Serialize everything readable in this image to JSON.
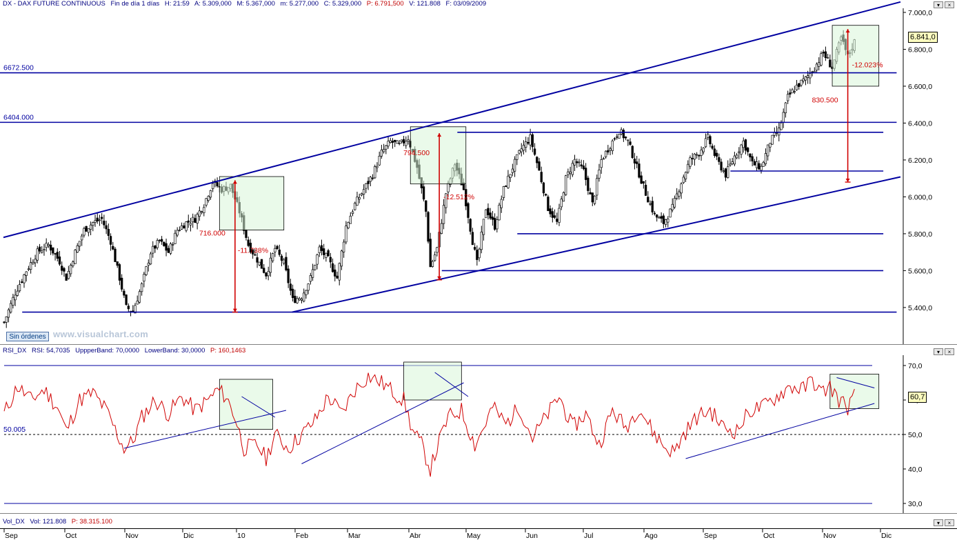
{
  "price_header": {
    "symbol": "DX - DAX FUTURE CONTINUOUS",
    "period": "Fin de día 1 días",
    "hour": "H: 21:59",
    "open": "A: 5.309,000",
    "max": "M: 5.367,000",
    "min": "m: 5.277,000",
    "close": "C: 5.329,000",
    "p": "P: 6.791,500",
    "volume": "V: 121.808",
    "date": "F: 03/09/2009"
  },
  "rsi_header": {
    "name": "RSI_DX",
    "rsi": "RSI: 54,7035",
    "upper": "UppperBand: 70,0000",
    "lower": "LowerBand: 30,0000",
    "p": "P: 160,1463"
  },
  "vol_header": {
    "name": "Vol_DX",
    "vol": "Vol: 121.808",
    "p": "P: 38.315.100"
  },
  "orders_button": "Sin órdenes",
  "watermark": "www.visualchart.com",
  "last_price_label": "6.841,0",
  "last_rsi_label": "60,7",
  "colors": {
    "lines": "#0000a0",
    "measure": "#d00000",
    "rsi": "#d00000",
    "box_fill": "#d8f5d8",
    "candles": "#000000"
  },
  "chart_data": [
    {
      "type": "candlestick",
      "title": "DX - DAX FUTURE CONTINUOUS",
      "ylim": [
        5250,
        7000
      ],
      "y_ticks": [
        "7.000,0",
        "6.800,0",
        "6.600,0",
        "6.400,0",
        "6.200,0",
        "6.000,0",
        "5.800,0",
        "5.600,0",
        "5.400,0"
      ],
      "y_tick_values": [
        7000,
        6800,
        6600,
        6400,
        6200,
        6000,
        5800,
        5600,
        5400
      ],
      "x_labels": [
        "Sep",
        "Oct",
        "Nov",
        "Dic",
        "10",
        "Feb",
        "Mar",
        "Abr",
        "May",
        "Jun",
        "Jul",
        "Ago",
        "Sep",
        "Oct",
        "Nov",
        "Dic"
      ],
      "close_path": [
        [
          0,
          5320
        ],
        [
          5,
          5480
        ],
        [
          10,
          5600
        ],
        [
          15,
          5700
        ],
        [
          20,
          5740
        ],
        [
          25,
          5650
        ],
        [
          28,
          5560
        ],
        [
          32,
          5700
        ],
        [
          36,
          5820
        ],
        [
          40,
          5860
        ],
        [
          44,
          5880
        ],
        [
          48,
          5760
        ],
        [
          52,
          5560
        ],
        [
          55,
          5400
        ],
        [
          58,
          5380
        ],
        [
          62,
          5520
        ],
        [
          66,
          5700
        ],
        [
          70,
          5760
        ],
        [
          74,
          5700
        ],
        [
          78,
          5820
        ],
        [
          82,
          5860
        ],
        [
          86,
          5880
        ],
        [
          90,
          5960
        ],
        [
          94,
          6080
        ],
        [
          98,
          6040
        ],
        [
          102,
          6060
        ],
        [
          106,
          5920
        ],
        [
          110,
          5740
        ],
        [
          114,
          5660
        ],
        [
          118,
          5580
        ],
        [
          122,
          5720
        ],
        [
          126,
          5640
        ],
        [
          130,
          5440
        ],
        [
          134,
          5460
        ],
        [
          138,
          5560
        ],
        [
          142,
          5720
        ],
        [
          146,
          5660
        ],
        [
          150,
          5560
        ],
        [
          154,
          5840
        ],
        [
          158,
          5960
        ],
        [
          162,
          6040
        ],
        [
          166,
          6120
        ],
        [
          170,
          6240
        ],
        [
          174,
          6300
        ],
        [
          178,
          6280
        ],
        [
          182,
          6320
        ],
        [
          186,
          6160
        ],
        [
          190,
          5920
        ],
        [
          192,
          5620
        ],
        [
          195,
          5720
        ],
        [
          199,
          6020
        ],
        [
          203,
          6180
        ],
        [
          207,
          6040
        ],
        [
          211,
          5760
        ],
        [
          213,
          5640
        ],
        [
          217,
          5940
        ],
        [
          221,
          5840
        ],
        [
          225,
          6040
        ],
        [
          229,
          6160
        ],
        [
          233,
          6260
        ],
        [
          237,
          6320
        ],
        [
          241,
          6140
        ],
        [
          245,
          5940
        ],
        [
          249,
          5860
        ],
        [
          253,
          6100
        ],
        [
          257,
          6200
        ],
        [
          261,
          6140
        ],
        [
          265,
          5960
        ],
        [
          269,
          6200
        ],
        [
          273,
          6280
        ],
        [
          277,
          6360
        ],
        [
          281,
          6300
        ],
        [
          285,
          6160
        ],
        [
          289,
          6020
        ],
        [
          293,
          5900
        ],
        [
          297,
          5860
        ],
        [
          301,
          5940
        ],
        [
          305,
          6080
        ],
        [
          309,
          6200
        ],
        [
          313,
          6240
        ],
        [
          317,
          6320
        ],
        [
          321,
          6200
        ],
        [
          325,
          6120
        ],
        [
          329,
          6220
        ],
        [
          333,
          6300
        ],
        [
          337,
          6180
        ],
        [
          341,
          6160
        ],
        [
          345,
          6300
        ],
        [
          349,
          6360
        ],
        [
          353,
          6540
        ],
        [
          357,
          6600
        ],
        [
          361,
          6640
        ],
        [
          365,
          6700
        ],
        [
          369,
          6780
        ],
        [
          373,
          6700
        ],
        [
          377,
          6860
        ],
        [
          380,
          6760
        ],
        [
          383,
          6841
        ]
      ],
      "hlines": [
        {
          "label": "6672.500",
          "value": 6672.5
        },
        {
          "label": "6404.000",
          "value": 6404
        },
        {
          "value": 6350
        },
        {
          "value": 6140
        },
        {
          "value": 5800
        },
        {
          "value": 5600
        },
        {
          "value": 5375
        }
      ],
      "trendlines": [
        {
          "from": [
            0,
            5780
          ],
          "to": [
            386,
            7000
          ]
        },
        {
          "from": [
            130,
            5375
          ],
          "to": [
            386,
            6060
          ]
        }
      ],
      "measurements": [
        {
          "points": "716.000",
          "percent": "-11.738%",
          "from_value": 6090,
          "to_value": 5375
        },
        {
          "points": "794.500",
          "percent": "-12.512%",
          "from_value": 6345,
          "to_value": 5550
        },
        {
          "points": "830.500",
          "percent": "-12.023%",
          "from_value": 6910,
          "to_value": 6080
        }
      ]
    },
    {
      "type": "line",
      "title": "RSI_DX",
      "ylim": [
        27,
        73
      ],
      "y_ticks": [
        "70,0",
        "60,0",
        "50,0",
        "40,0",
        "30,0"
      ],
      "y_tick_values": [
        70,
        60,
        50,
        40,
        30
      ],
      "reference_line": {
        "label": "50.005",
        "value": 50
      },
      "bands": [
        70,
        30
      ],
      "x": [
        0,
        6,
        12,
        18,
        24,
        28,
        34,
        40,
        46,
        51,
        54,
        58,
        62,
        68,
        74,
        80,
        86,
        92,
        96,
        100,
        104,
        108,
        114,
        118,
        122,
        128,
        134,
        140,
        146,
        152,
        158,
        164,
        170,
        176,
        180,
        184,
        188,
        192,
        196,
        200,
        206,
        212,
        216,
        220,
        226,
        232,
        238,
        244,
        250,
        256,
        262,
        268,
        274,
        280,
        286,
        292,
        298,
        302,
        306,
        312,
        318,
        324,
        330,
        336,
        342,
        348,
        354,
        360,
        364,
        368,
        372,
        376,
        380,
        383
      ],
      "values": [
        56,
        64,
        60,
        63,
        58,
        51,
        60,
        62,
        57,
        50,
        46,
        48,
        55,
        60,
        56,
        61,
        57,
        60,
        63,
        61,
        55,
        46,
        47,
        43,
        50,
        46,
        50,
        54,
        61,
        56,
        63,
        67,
        65,
        62,
        60,
        51,
        47,
        40,
        48,
        55,
        57,
        47,
        52,
        58,
        53,
        58,
        49,
        55,
        61,
        52,
        56,
        47,
        57,
        52,
        58,
        51,
        46,
        45,
        50,
        55,
        57,
        52,
        51,
        57,
        58,
        61,
        64,
        63,
        66,
        62,
        64,
        60,
        58,
        61
      ]
    }
  ]
}
